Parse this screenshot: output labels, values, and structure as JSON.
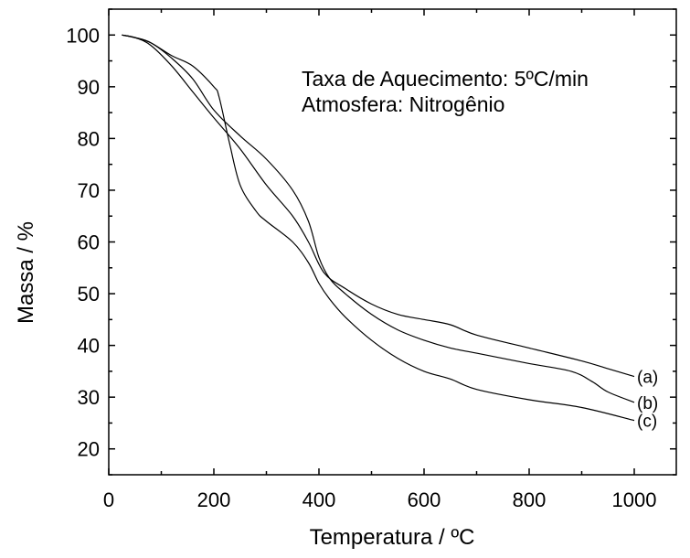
{
  "chart_data": {
    "type": "line",
    "xlabel": "Temperatura / ºC",
    "ylabel": "Massa / %",
    "xlim": [
      0,
      1080
    ],
    "ylim": [
      15,
      105
    ],
    "x_ticks": [
      0,
      200,
      400,
      600,
      800,
      1000
    ],
    "y_ticks": [
      20,
      30,
      40,
      50,
      60,
      70,
      80,
      90,
      100
    ],
    "grid": false,
    "annotations": [
      "Taxa de Aquecimento: 5ºC/min",
      "Atmosfera: Nitrogênio"
    ],
    "series": [
      {
        "name": "(a)",
        "x": [
          25,
          50,
          80,
          120,
          160,
          200,
          250,
          300,
          350,
          380,
          410,
          450,
          500,
          550,
          600,
          650,
          700,
          800,
          900,
          950,
          1000
        ],
        "y": [
          100,
          99.5,
          98,
          94,
          89,
          84,
          78,
          71,
          65,
          60,
          54,
          51,
          48,
          46,
          45,
          44,
          42,
          39.5,
          37,
          35.5,
          34
        ]
      },
      {
        "name": "(b)",
        "x": [
          25,
          50,
          80,
          120,
          160,
          200,
          250,
          300,
          350,
          380,
          400,
          420,
          450,
          500,
          550,
          600,
          650,
          700,
          800,
          880,
          920,
          950,
          1000
        ],
        "y": [
          100,
          99.5,
          98.5,
          95.5,
          91.5,
          85.5,
          80.5,
          76,
          70,
          64,
          57,
          53,
          50,
          46,
          43,
          41,
          39.5,
          38.5,
          36.5,
          35,
          33,
          31,
          29
        ]
      },
      {
        "name": "(c)",
        "x": [
          25,
          50,
          80,
          120,
          160,
          200,
          210,
          230,
          250,
          280,
          300,
          350,
          380,
          400,
          420,
          450,
          500,
          550,
          600,
          650,
          700,
          800,
          900,
          1000
        ],
        "y": [
          100,
          99.5,
          98.5,
          96,
          94,
          90,
          88,
          79,
          71,
          66,
          64,
          60,
          56,
          52,
          49,
          45.5,
          41,
          37.5,
          35,
          33.5,
          31.5,
          29.5,
          28,
          25.5
        ]
      }
    ]
  }
}
